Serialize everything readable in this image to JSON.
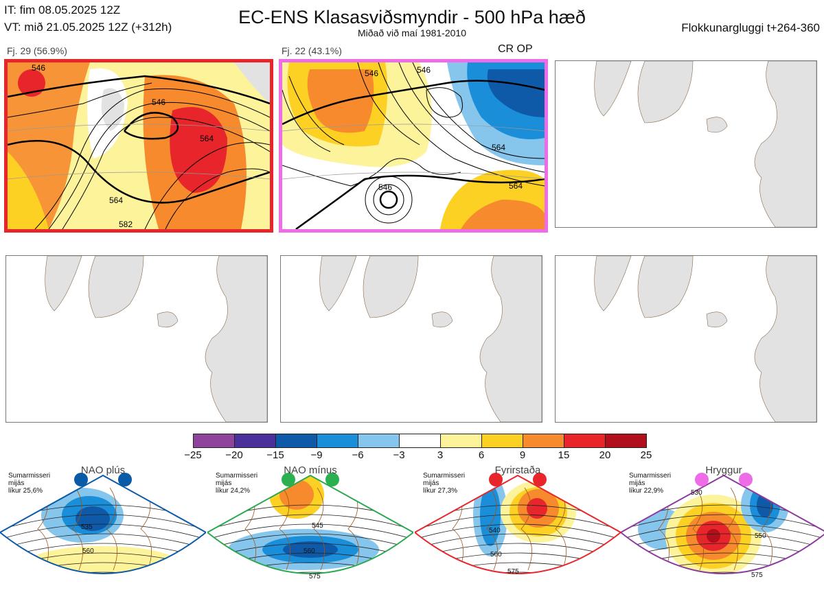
{
  "header": {
    "initial_time": "IT: fim 08.05.2025 12Z",
    "valid_time": "VT: mið 21.05.2025 12Z  (+312h)",
    "title": "EC-ENS Klasasviðsmyndir - 500 hPa hæð",
    "subtitle": "Miðað við maí 1981-2010",
    "window": "Flokkunargluggi t+264-360"
  },
  "clusters": [
    {
      "label": "Fj. 29 (56.9%)",
      "frame_color": "#e8252b",
      "contours": [
        "546",
        "546",
        "564",
        "564",
        "582"
      ]
    },
    {
      "label": "Fj. 22 (43.1%)",
      "frame_color": "#ee6ce8",
      "tag": "CR OP",
      "contours": [
        "546",
        "546",
        "546",
        "564",
        "564"
      ]
    }
  ],
  "colorbar": {
    "ticks": [
      "−25",
      "−20",
      "−15",
      "−9",
      "−6",
      "−3",
      "3",
      "6",
      "9",
      "15",
      "20",
      "25"
    ],
    "colors": [
      "#8e449c",
      "#4a3199",
      "#0f5aa8",
      "#1a8ed8",
      "#86c6ec",
      "#ffffff",
      "#fdf39a",
      "#fdd024",
      "#f68a2c",
      "#e8252b",
      "#b10f1b"
    ]
  },
  "regimes": [
    {
      "name": "NAO plús",
      "note": [
        "Sumarmisseri",
        "mijás",
        "líkur 25,6%"
      ],
      "color": "#0b5aa8",
      "dot_color": "#0b5aa8",
      "contours": [
        "535",
        "560"
      ]
    },
    {
      "name": "NAO mínus",
      "note": [
        "Sumarmisseri",
        "mijás",
        "líkur 24,2%"
      ],
      "color": "#2aa850",
      "dot_color": "#2ab04e",
      "contours": [
        "545",
        "560",
        "575"
      ]
    },
    {
      "name": "Fyrirstaða",
      "note": [
        "Sumarmisseri",
        "mijás",
        "líkur 27,3%"
      ],
      "color": "#e8252b",
      "dot_color": "#e8252b",
      "contours": [
        "540",
        "560",
        "575"
      ]
    },
    {
      "name": "Hryggur",
      "note": [
        "Sumarmisseri",
        "mijás",
        "líkur 22,9%"
      ],
      "color": "#8c3a9e",
      "dot_color": "#ee6ce8",
      "contours": [
        "530",
        "550",
        "575"
      ]
    }
  ]
}
